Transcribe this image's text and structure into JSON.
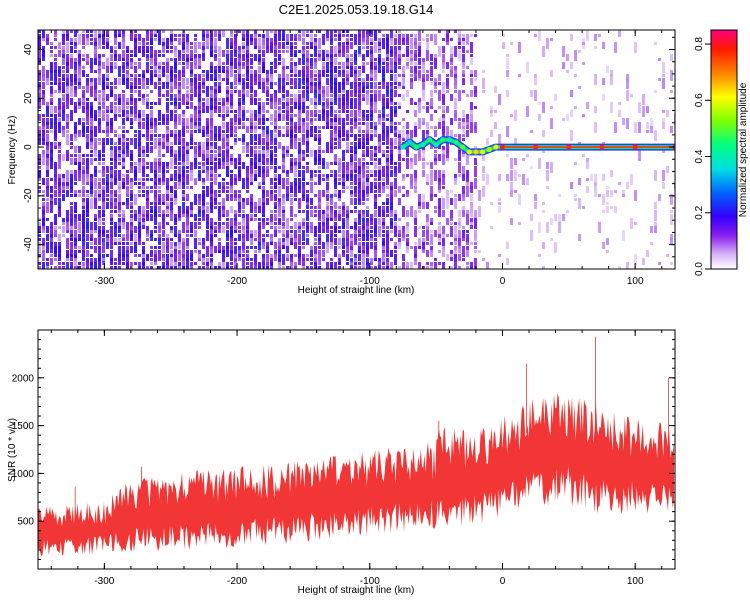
{
  "title": "C2E1.2025.053.19.18.G14",
  "colors": {
    "snr": "#f23535",
    "axis": "#000000",
    "background": "#ffffff"
  },
  "chart_data": [
    {
      "type": "heatmap",
      "title": "C2E1.2025.053.19.18.G14",
      "xlabel": "Height of straight line (km)",
      "ylabel": "Frequency (Hz)",
      "xlim": [
        -350,
        130
      ],
      "ylim": [
        -50,
        48
      ],
      "x_ticks": [
        -300,
        -200,
        -100,
        0,
        100
      ],
      "x_tick_labels": [
        "-300",
        "-200",
        "-100",
        "0",
        "100"
      ],
      "y_ticks": [
        -40,
        -20,
        0,
        20,
        40
      ],
      "y_tick_labels": [
        "-40",
        "-20",
        "0",
        "20",
        "40"
      ],
      "colorbar": {
        "label": "Normalized spectral amplitude",
        "range": [
          0.0,
          0.85
        ],
        "ticks": [
          0.0,
          0.2,
          0.4,
          0.6,
          0.8
        ],
        "tick_labels": [
          "0.0",
          "0.2",
          "0.4",
          "0.6",
          "0.8"
        ]
      },
      "noise_regions": [
        {
          "x_range": [
            -350,
            -80
          ],
          "level": "high"
        },
        {
          "x_range": [
            -80,
            -20
          ],
          "level": "medium"
        },
        {
          "x_range": [
            -20,
            130
          ],
          "level": "low"
        }
      ],
      "carrier": {
        "x": [
          -75,
          -70,
          -65,
          -60,
          -55,
          -50,
          -45,
          -40,
          -35,
          -30,
          -25,
          -20,
          -15,
          -10,
          -5,
          0,
          25,
          50,
          75,
          100,
          130
        ],
        "freq": [
          0,
          2,
          0,
          1,
          3,
          1,
          3,
          3,
          2,
          0,
          -2,
          -2,
          -2,
          -1,
          0,
          0,
          0,
          0,
          0,
          0,
          0
        ],
        "amplitude": [
          0.4,
          0.35,
          0.45,
          0.4,
          0.45,
          0.4,
          0.45,
          0.4,
          0.45,
          0.5,
          0.6,
          0.65,
          0.6,
          0.55,
          0.6,
          0.8,
          0.8,
          0.8,
          0.8,
          0.8,
          0.8
        ]
      }
    },
    {
      "type": "line",
      "xlabel": "Height of straight line (km)",
      "ylabel": "SNR (10 * v/v)",
      "xlim": [
        -350,
        130
      ],
      "ylim": [
        0,
        2500
      ],
      "x_ticks": [
        -300,
        -200,
        -100,
        0,
        100
      ],
      "x_tick_labels": [
        "-300",
        "-200",
        "-100",
        "0",
        "100"
      ],
      "y_ticks": [
        500,
        1000,
        1500,
        2000
      ],
      "y_tick_labels": [
        "500",
        "1000",
        "1500",
        "2000"
      ],
      "series": [
        {
          "name": "SNR",
          "x": [
            -350,
            -300,
            -280,
            -250,
            -200,
            -150,
            -100,
            -50,
            -49,
            -20,
            0,
            20,
            50,
            80,
            100,
            130
          ],
          "low": [
            120,
            150,
            150,
            180,
            220,
            260,
            330,
            400,
            450,
            420,
            520,
            600,
            650,
            540,
            560,
            600
          ],
          "high": [
            650,
            720,
            950,
            1000,
            1080,
            1150,
            1250,
            1350,
            1500,
            1450,
            1600,
            1800,
            1880,
            1650,
            1600,
            1500
          ],
          "peaks": [
            {
              "x": -322,
              "value": 860
            },
            {
              "x": -272,
              "value": 1070
            },
            {
              "x": -48,
              "value": 1550
            },
            {
              "x": 18,
              "value": 2150
            },
            {
              "x": 70,
              "value": 2430
            },
            {
              "x": 125,
              "value": 2000
            }
          ]
        }
      ]
    }
  ]
}
